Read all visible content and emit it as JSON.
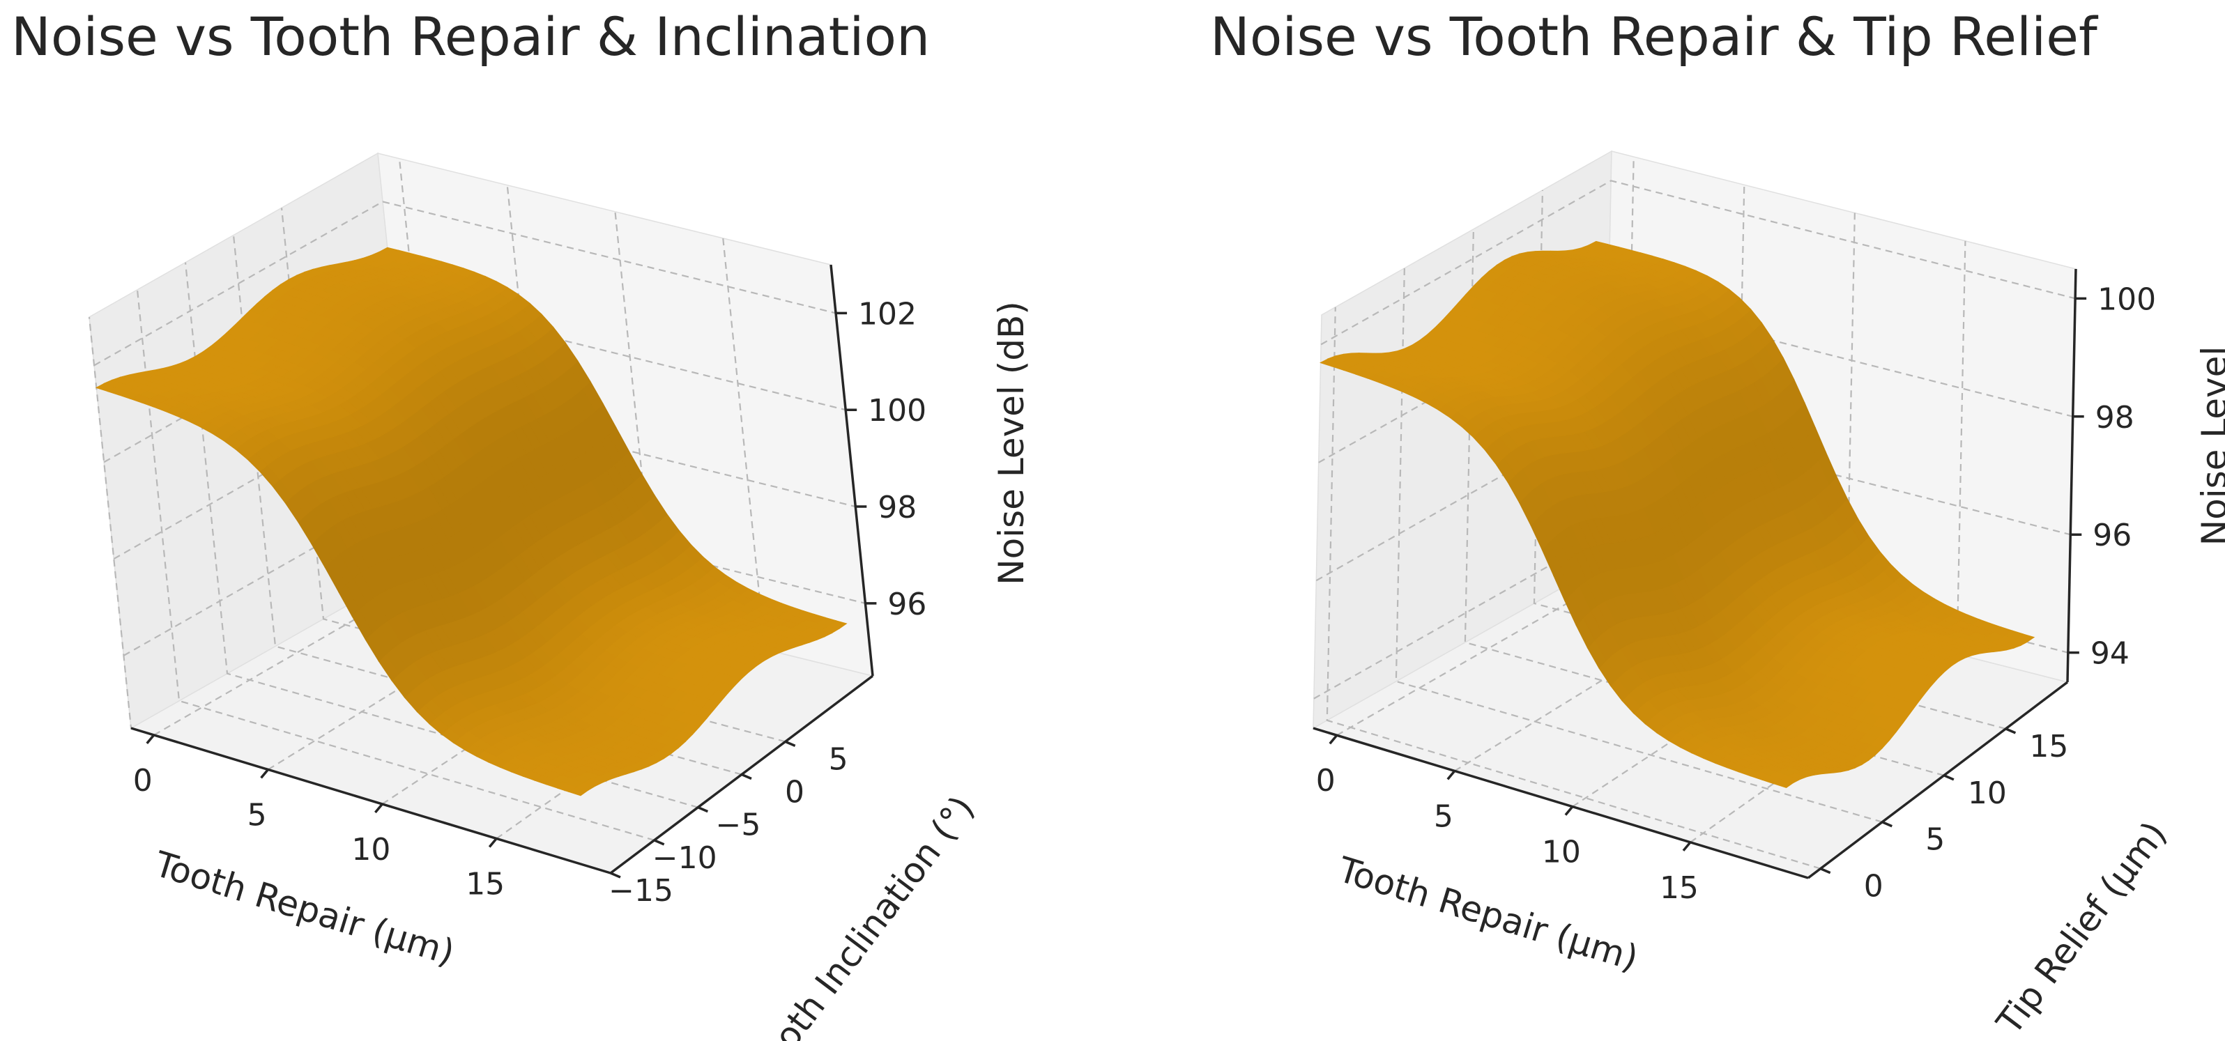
{
  "chart_data": [
    {
      "type": "surface",
      "title": "Noise vs Tooth Repair & Inclination",
      "xlabel": "Tooth Repair (μm)",
      "ylabel": "Tooth Inclination (°)",
      "zlabel": "Noise Level (dB)",
      "xlim": [
        -1,
        20
      ],
      "ylim": [
        -15,
        15
      ],
      "zlim": [
        94.5,
        103
      ],
      "xticks": [
        "0",
        "5",
        "10",
        "15"
      ],
      "yticks": [
        "−15",
        "−10",
        "−5",
        "0",
        "5"
      ],
      "zticks": [
        "96",
        "98",
        "100",
        "102"
      ],
      "surface_color": "#d4920c",
      "surface": {
        "x_range": [
          -1,
          19
        ],
        "y_range": [
          -15,
          15
        ],
        "z_high": 101.3,
        "z_low": 95.7,
        "transition_center": 9,
        "transition_width": 3.2,
        "ripple_amplitude": 0.5,
        "ripple_axis": "y"
      }
    },
    {
      "type": "surface",
      "title": "Noise vs Tooth Repair & Tip Relief",
      "xlabel": "Tooth Repair (μm)",
      "ylabel": "Tip Relief (μm)",
      "zlabel": "Noise Level",
      "xlim": [
        -1,
        20
      ],
      "ylim": [
        -1,
        20
      ],
      "zlim": [
        93.5,
        100.5
      ],
      "xticks": [
        "0",
        "5",
        "10",
        "15"
      ],
      "yticks": [
        "0",
        "5",
        "10",
        "15"
      ],
      "zticks": [
        "94",
        "96",
        "98",
        "100"
      ],
      "surface_color": "#d4920c",
      "surface": {
        "x_range": [
          -1,
          19
        ],
        "y_range": [
          -1,
          19
        ],
        "z_high": 99.4,
        "z_low": 94.6,
        "transition_center": 9,
        "transition_width": 3.2,
        "ripple_amplitude": 0.6,
        "ripple_axis": "y"
      }
    }
  ]
}
